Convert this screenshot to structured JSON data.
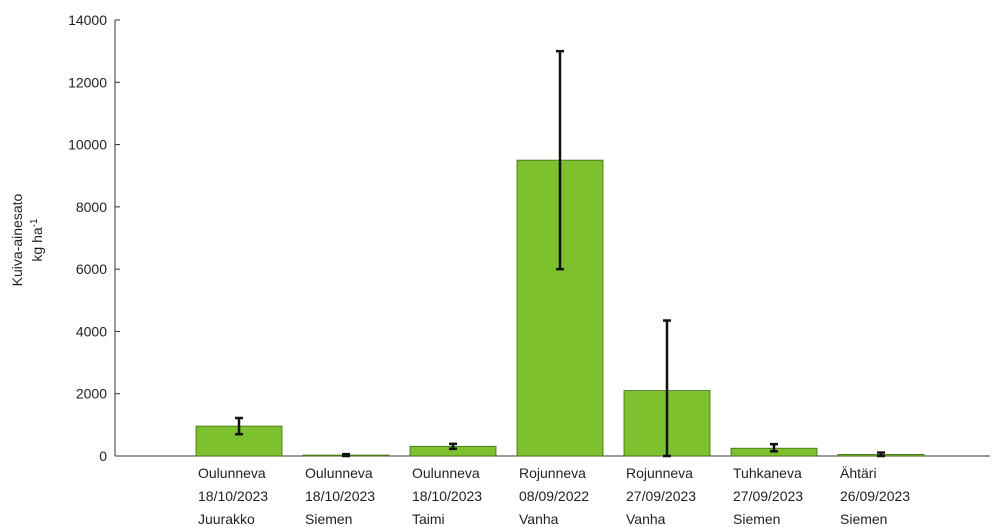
{
  "chart_data": {
    "type": "bar",
    "categories": [
      [
        "Oulunneva",
        "18/10/2023",
        "Juurakko"
      ],
      [
        "Oulunneva",
        "18/10/2023",
        "Siemen"
      ],
      [
        "Oulunneva",
        "18/10/2023",
        "Taimi"
      ],
      [
        "Rojunneva",
        "08/09/2022",
        "Vanha"
      ],
      [
        "Rojunneva",
        "27/09/2023",
        "Vanha"
      ],
      [
        "Tuhkaneva",
        "27/09/2023",
        "Siemen"
      ],
      [
        "Ähtäri",
        "26/09/2023",
        "Siemen"
      ]
    ],
    "values": [
      960,
      30,
      310,
      9500,
      2100,
      250,
      50
    ],
    "error_low": [
      700,
      0,
      230,
      6000,
      0,
      150,
      0
    ],
    "error_high": [
      1220,
      60,
      390,
      13000,
      4350,
      380,
      110
    ],
    "ylabel_line1": "Kuiva-ainesato",
    "ylabel_line2_base": "kg ha",
    "ylabel_line2_sup": "-1",
    "ylim": [
      0,
      14000
    ],
    "yticks": [
      "0",
      "2000",
      "4000",
      "6000",
      "8000",
      "10000",
      "12000",
      "14000"
    ],
    "grid": false,
    "colors": {
      "bar": "#7dc12e",
      "bar_edge": "#3d6a12",
      "error": "#111111",
      "axis": "#333333"
    }
  }
}
